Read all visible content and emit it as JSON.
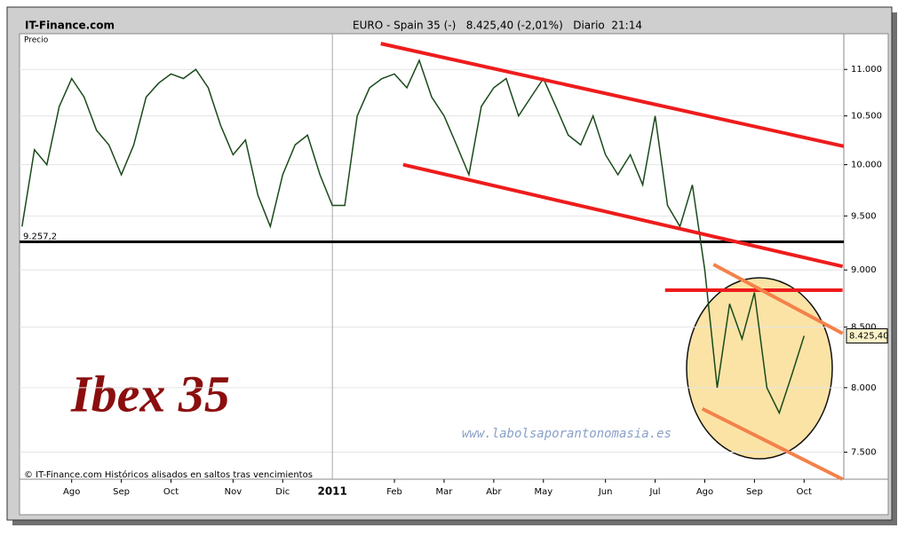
{
  "chart_data": {
    "type": "line",
    "site": "IT-Finance.com",
    "title": "EURO - Spain 35 (-)   8.425,40 (-2,01%)   Diario  21:14",
    "y_label": "Precio",
    "watermark": "Ibex 35",
    "url": "www.labolsaporantonomasia.es",
    "footer": "© IT-Finance.com  Históricos alisados en saltos tras vencimientos",
    "year_label": "2011",
    "categories": [
      null,
      null,
      null,
      null,
      "Ago",
      null,
      null,
      null,
      "Sep",
      null,
      null,
      null,
      "Oct",
      null,
      null,
      null,
      null,
      "Nov",
      null,
      null,
      null,
      "Dic",
      null,
      null,
      null,
      null,
      null,
      null,
      null,
      null,
      "Feb",
      null,
      null,
      null,
      "Mar",
      null,
      null,
      null,
      "Abr",
      null,
      null,
      null,
      "May",
      null,
      null,
      null,
      null,
      "Jun",
      null,
      null,
      null,
      "Jul",
      null,
      null,
      null,
      "Ago",
      null,
      null,
      null,
      "Sep",
      null,
      null,
      null,
      "Oct"
    ],
    "year_index": 25,
    "series": [
      {
        "name": "Precio",
        "color": "#1a4a1a",
        "values": [
          9400,
          10150,
          10000,
          10600,
          10900,
          10700,
          10350,
          10200,
          9900,
          10200,
          10700,
          10850,
          10950,
          10900,
          11000,
          10800,
          10400,
          10100,
          10250,
          9700,
          9400,
          9900,
          10200,
          10300,
          9900,
          9600,
          9600,
          10500,
          10800,
          10900,
          10950,
          10800,
          11100,
          10700,
          10500,
          10200,
          9900,
          10600,
          10800,
          10900,
          10500,
          10700,
          10900,
          10600,
          10300,
          10200,
          10500,
          10100,
          9900,
          10100,
          9800,
          10500,
          9600,
          9400,
          9800,
          9000,
          8000,
          8700,
          8400,
          8800,
          8000,
          7800,
          8100,
          8425.4
        ]
      }
    ],
    "xlim": [
      -0.2,
      66.2
    ],
    "log_scale": true,
    "ylim": [
      7300,
      11400
    ],
    "yticks": [
      {
        "value": 7500,
        "label": "7.500"
      },
      {
        "value": 8000,
        "label": "8.000"
      },
      {
        "value": 8500,
        "label": "8.500"
      },
      {
        "value": 9000,
        "label": "9.000"
      },
      {
        "value": 9500,
        "label": "9.500"
      },
      {
        "value": 10000,
        "label": "10.000"
      },
      {
        "value": 10500,
        "label": "10.500"
      },
      {
        "value": 11000,
        "label": "11.000"
      }
    ],
    "grid": true,
    "support": {
      "value": 9257.2,
      "label": "9.257,2",
      "color": "#000000"
    },
    "last_price": {
      "value": 8425.4,
      "label": "8.425,40"
    },
    "trend_lines": [
      {
        "color": "#ee1c1c",
        "x": [
          28.9,
          66.4
        ],
        "y": [
          11288,
          10180
        ]
      },
      {
        "color": "#ee1c1c",
        "x": [
          30.7,
          66.1
        ],
        "y": [
          10000,
          9032
        ]
      },
      {
        "color": "#ee1c1c",
        "x": [
          51.8,
          66.1
        ],
        "y": [
          8820,
          8820
        ]
      },
      {
        "color": "#f4814a",
        "x": [
          55.7,
          66.1
        ],
        "y": [
          9050,
          8446
        ]
      },
      {
        "color": "#f4814a",
        "x": [
          54.8,
          66.1
        ],
        "y": [
          7833,
          7300
        ]
      }
    ]
  }
}
